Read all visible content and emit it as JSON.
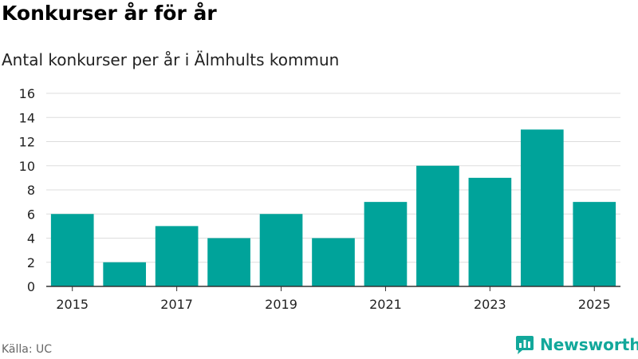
{
  "header": {
    "title": "Konkurser år för år",
    "subtitle": "Antal konkurser per år i Älmhults kommun"
  },
  "footer": {
    "source": "Källa: UC",
    "brand": "Newsworthy"
  },
  "colors": {
    "bar": "#00a39a",
    "grid": "#dddddd",
    "axis": "#333333",
    "brand": "#12a89b"
  },
  "chart_data": {
    "type": "bar",
    "title": "Konkurser år för år",
    "subtitle": "Antal konkurser per år i Älmhults kommun",
    "xlabel": "",
    "ylabel": "",
    "categories": [
      "2015",
      "2016",
      "2017",
      "2018",
      "2019",
      "2020",
      "2021",
      "2022",
      "2023",
      "2024",
      "2025"
    ],
    "values": [
      6,
      2,
      5,
      4,
      6,
      4,
      7,
      10,
      9,
      13,
      7
    ],
    "x_tick_labels": [
      "2015",
      "2017",
      "2019",
      "2021",
      "2023",
      "2025"
    ],
    "y_ticks": [
      0,
      2,
      4,
      6,
      8,
      10,
      12,
      14,
      16
    ],
    "ylim": [
      0,
      16
    ],
    "grid": true
  }
}
